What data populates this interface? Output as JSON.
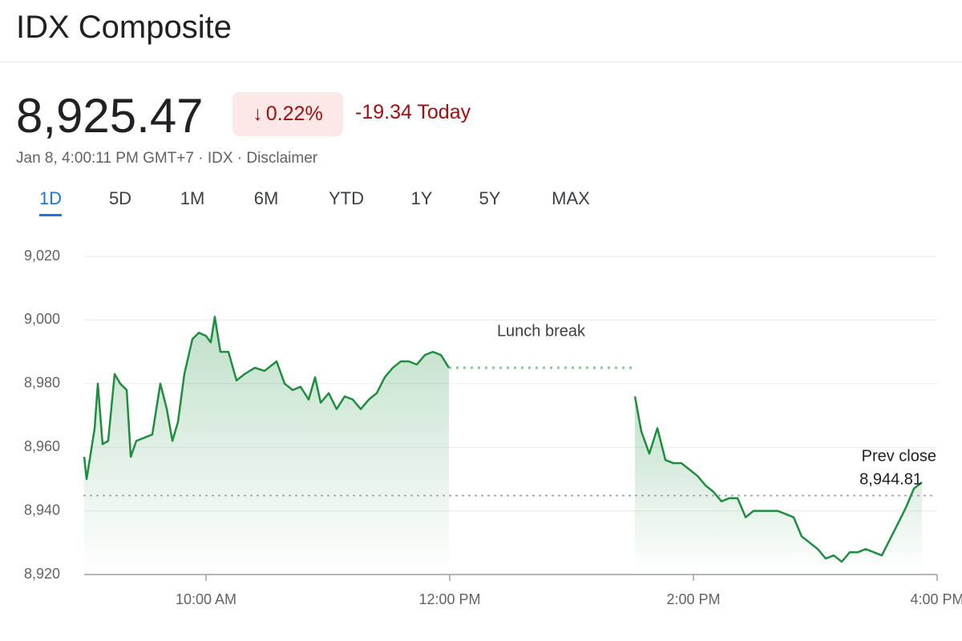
{
  "header": {
    "title": "IDX Composite",
    "price": "8,925.47",
    "change_percent": "0.22%",
    "change_today": "-19.34 Today",
    "meta": [
      "Jan 8, 4:00:11 PM GMT+7",
      "IDX",
      "Disclaimer"
    ]
  },
  "tabs": {
    "items": [
      "1D",
      "5D",
      "1M",
      "6M",
      "YTD",
      "1Y",
      "5Y",
      "MAX"
    ],
    "selected": "1D"
  },
  "chart_data": {
    "type": "line",
    "color": "#1e8e3e",
    "grid": true,
    "annotation": "Lunch break",
    "prev_close": {
      "label": "Prev close",
      "value": 8944.81,
      "value_label": "8,944.81"
    },
    "xlim": [
      9,
      16
    ],
    "xticks": [
      {
        "value": 10,
        "label": "10:00 AM"
      },
      {
        "value": 12,
        "label": "12:00 PM"
      },
      {
        "value": 14,
        "label": "2:00 PM"
      },
      {
        "value": 16,
        "label": "4:00 PM"
      }
    ],
    "ylim": [
      8920,
      9020
    ],
    "yticks": [
      {
        "value": 8920,
        "label": "8,920"
      },
      {
        "value": 8940,
        "label": "8,940"
      },
      {
        "value": 8960,
        "label": "8,960"
      },
      {
        "value": 8980,
        "label": "8,980"
      },
      {
        "value": 9000,
        "label": "9,000"
      },
      {
        "value": 9020,
        "label": "9,020"
      }
    ],
    "x": [
      9,
      9.02,
      9.086,
      9.112,
      9.151,
      9.197,
      9.25,
      9.296,
      9.349,
      9.382,
      9.428,
      9.493,
      9.559,
      9.625,
      9.678,
      9.724,
      9.77,
      9.822,
      9.888,
      9.941,
      10,
      10.039,
      10.072,
      10.118,
      10.184,
      10.25,
      10.316,
      10.401,
      10.48,
      10.579,
      10.645,
      10.711,
      10.776,
      10.842,
      10.895,
      10.941,
      11.007,
      11.072,
      11.138,
      11.204,
      11.27,
      11.336,
      11.401,
      11.467,
      11.533,
      11.599,
      11.664,
      11.73,
      11.796,
      11.862,
      11.928,
      11.993,
      13,
      13.52,
      13.572,
      13.638,
      13.704,
      13.77,
      13.836,
      13.901,
      13.967,
      14.033,
      14.099,
      14.164,
      14.23,
      14.296,
      14.362,
      14.428,
      14.493,
      14.559,
      14.625,
      14.691,
      14.757,
      14.822,
      14.888,
      14.954,
      15.02,
      15.086,
      15.151,
      15.217,
      15.283,
      15.349,
      15.414,
      15.48,
      15.546,
      15.612,
      15.678,
      15.743,
      15.809,
      15.875
    ],
    "values": [
      8957,
      8950,
      8966,
      8980,
      8961,
      8962,
      8983,
      8980,
      8978,
      8957,
      8962,
      8963,
      8964,
      8980,
      8972,
      8962,
      8968,
      8983,
      8994,
      8996,
      8995,
      8993,
      9001,
      8990,
      8990,
      8981,
      8983,
      8985,
      8984,
      8987,
      8980,
      8978,
      8979,
      8975,
      8982,
      8974,
      8977,
      8972,
      8976,
      8975,
      8972,
      8975,
      8977,
      8982,
      8985,
      8987,
      8987,
      8986,
      8989,
      8990,
      8989,
      8985,
      null,
      8976,
      8965,
      8958,
      8966,
      8956,
      8955,
      8955,
      8953,
      8951,
      8948,
      8946,
      8943,
      8944,
      8944,
      8938,
      8940,
      8940,
      8940,
      8940,
      8939,
      8938,
      8932,
      8930,
      8928,
      8925,
      8926,
      8924,
      8927,
      8927,
      8928,
      8927,
      8926,
      8931,
      8936,
      8941,
      8947,
      8949
    ]
  }
}
